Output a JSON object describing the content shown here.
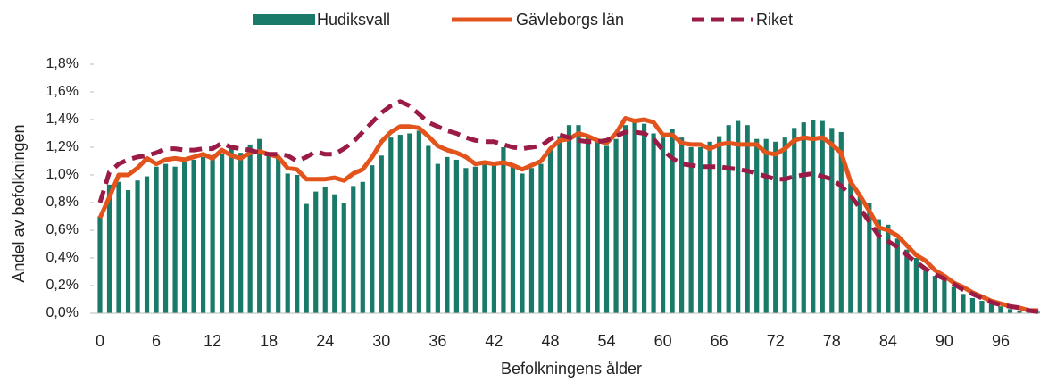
{
  "chart_data": {
    "type": "bar",
    "y_label": "Andel av befolkningen",
    "x_label": "Befolkningens ålder",
    "categories": [
      "0",
      null,
      null,
      null,
      null,
      null,
      "6",
      null,
      null,
      null,
      null,
      null,
      "12",
      null,
      null,
      null,
      null,
      null,
      "18",
      null,
      null,
      null,
      null,
      null,
      "24",
      null,
      null,
      null,
      null,
      null,
      "30",
      null,
      null,
      null,
      null,
      null,
      "36",
      null,
      null,
      null,
      null,
      null,
      "42",
      null,
      null,
      null,
      null,
      null,
      "48",
      null,
      null,
      null,
      null,
      null,
      "54",
      null,
      null,
      null,
      null,
      null,
      "60",
      null,
      null,
      null,
      null,
      null,
      "66",
      null,
      null,
      null,
      null,
      null,
      "72",
      null,
      null,
      null,
      null,
      null,
      "78",
      null,
      null,
      null,
      null,
      null,
      "84",
      null,
      null,
      null,
      null,
      null,
      "90",
      null,
      null,
      null,
      null,
      null,
      "96",
      null,
      null,
      null,
      null
    ],
    "ylim": [
      0,
      1.8
    ],
    "yticks": [
      {
        "value": 0,
        "label": "0,0%"
      },
      {
        "value": 0.2,
        "label": "0,2%"
      },
      {
        "value": 0.4,
        "label": "0,4%"
      },
      {
        "value": 0.6,
        "label": "0,6%"
      },
      {
        "value": 0.8,
        "label": "0,8%"
      },
      {
        "value": 1.0,
        "label": "1,0%"
      },
      {
        "value": 1.2,
        "label": "1,2%"
      },
      {
        "value": 1.4,
        "label": "1,4%"
      },
      {
        "value": 1.6,
        "label": "1,6%"
      },
      {
        "value": 1.8,
        "label": "1,8%"
      }
    ],
    "legend": "top",
    "series": [
      {
        "name": "Hudiksvall",
        "type": "bar",
        "color": "#1a7a69",
        "values": [
          0.7,
          0.93,
          0.95,
          0.89,
          0.96,
          0.99,
          1.06,
          1.08,
          1.06,
          1.09,
          1.11,
          1.13,
          1.13,
          1.15,
          1.21,
          1.16,
          1.22,
          1.26,
          1.15,
          1.12,
          1.01,
          1.0,
          0.79,
          0.88,
          0.91,
          0.86,
          0.8,
          0.92,
          0.95,
          1.07,
          1.14,
          1.27,
          1.29,
          1.3,
          1.32,
          1.21,
          1.08,
          1.13,
          1.11,
          1.05,
          1.06,
          1.08,
          1.07,
          1.2,
          1.07,
          1.01,
          1.05,
          1.08,
          1.18,
          1.28,
          1.36,
          1.36,
          1.29,
          1.24,
          1.21,
          1.26,
          1.36,
          1.4,
          1.37,
          1.3,
          1.27,
          1.33,
          1.27,
          1.2,
          1.2,
          1.24,
          1.28,
          1.36,
          1.39,
          1.36,
          1.26,
          1.26,
          1.24,
          1.27,
          1.34,
          1.38,
          1.4,
          1.39,
          1.34,
          1.31,
          0.94,
          0.86,
          0.8,
          0.68,
          0.64,
          0.54,
          0.46,
          0.4,
          0.33,
          0.27,
          0.27,
          0.19,
          0.14,
          0.11,
          0.09,
          0.07,
          0.05,
          0.03,
          0.02,
          0.01,
          0.01
        ]
      },
      {
        "name": "Gävleborgs län",
        "type": "line",
        "color": "#e2541c",
        "dashed": false,
        "values": [
          0.69,
          0.84,
          1.0,
          1.0,
          1.05,
          1.12,
          1.08,
          1.11,
          1.12,
          1.11,
          1.13,
          1.15,
          1.12,
          1.18,
          1.14,
          1.12,
          1.16,
          1.17,
          1.15,
          1.13,
          1.05,
          1.04,
          0.97,
          0.97,
          0.97,
          0.98,
          0.96,
          1.01,
          1.04,
          1.13,
          1.24,
          1.31,
          1.35,
          1.35,
          1.34,
          1.28,
          1.21,
          1.18,
          1.16,
          1.13,
          1.08,
          1.09,
          1.08,
          1.09,
          1.07,
          1.04,
          1.07,
          1.1,
          1.19,
          1.25,
          1.26,
          1.3,
          1.28,
          1.25,
          1.23,
          1.3,
          1.41,
          1.39,
          1.4,
          1.38,
          1.29,
          1.29,
          1.23,
          1.22,
          1.22,
          1.19,
          1.22,
          1.23,
          1.22,
          1.22,
          1.22,
          1.16,
          1.15,
          1.19,
          1.25,
          1.27,
          1.26,
          1.27,
          1.22,
          1.16,
          0.95,
          0.85,
          0.74,
          0.62,
          0.6,
          0.56,
          0.49,
          0.42,
          0.38,
          0.31,
          0.27,
          0.22,
          0.19,
          0.15,
          0.12,
          0.09,
          0.07,
          0.05,
          0.04,
          0.02,
          0.02
        ]
      },
      {
        "name": "Riket",
        "type": "line",
        "color": "#9b1b47",
        "dashed": true,
        "values": [
          0.8,
          1.02,
          1.08,
          1.11,
          1.13,
          1.14,
          1.16,
          1.19,
          1.19,
          1.18,
          1.18,
          1.19,
          1.19,
          1.23,
          1.2,
          1.19,
          1.18,
          1.16,
          1.15,
          1.15,
          1.14,
          1.1,
          1.13,
          1.17,
          1.15,
          1.15,
          1.19,
          1.24,
          1.31,
          1.38,
          1.45,
          1.5,
          1.53,
          1.5,
          1.44,
          1.38,
          1.35,
          1.32,
          1.3,
          1.27,
          1.25,
          1.24,
          1.24,
          1.22,
          1.2,
          1.19,
          1.2,
          1.21,
          1.26,
          1.29,
          1.27,
          1.25,
          1.24,
          1.24,
          1.25,
          1.28,
          1.31,
          1.31,
          1.3,
          1.26,
          1.18,
          1.12,
          1.08,
          1.07,
          1.06,
          1.06,
          1.06,
          1.05,
          1.04,
          1.03,
          1.01,
          0.99,
          0.97,
          0.97,
          0.99,
          1.0,
          1.01,
          0.99,
          0.97,
          0.92,
          0.85,
          0.76,
          0.66,
          0.56,
          0.52,
          0.48,
          0.42,
          0.37,
          0.32,
          0.28,
          0.25,
          0.21,
          0.17,
          0.14,
          0.11,
          0.08,
          0.06,
          0.05,
          0.04,
          0.02,
          0.01
        ]
      }
    ]
  }
}
